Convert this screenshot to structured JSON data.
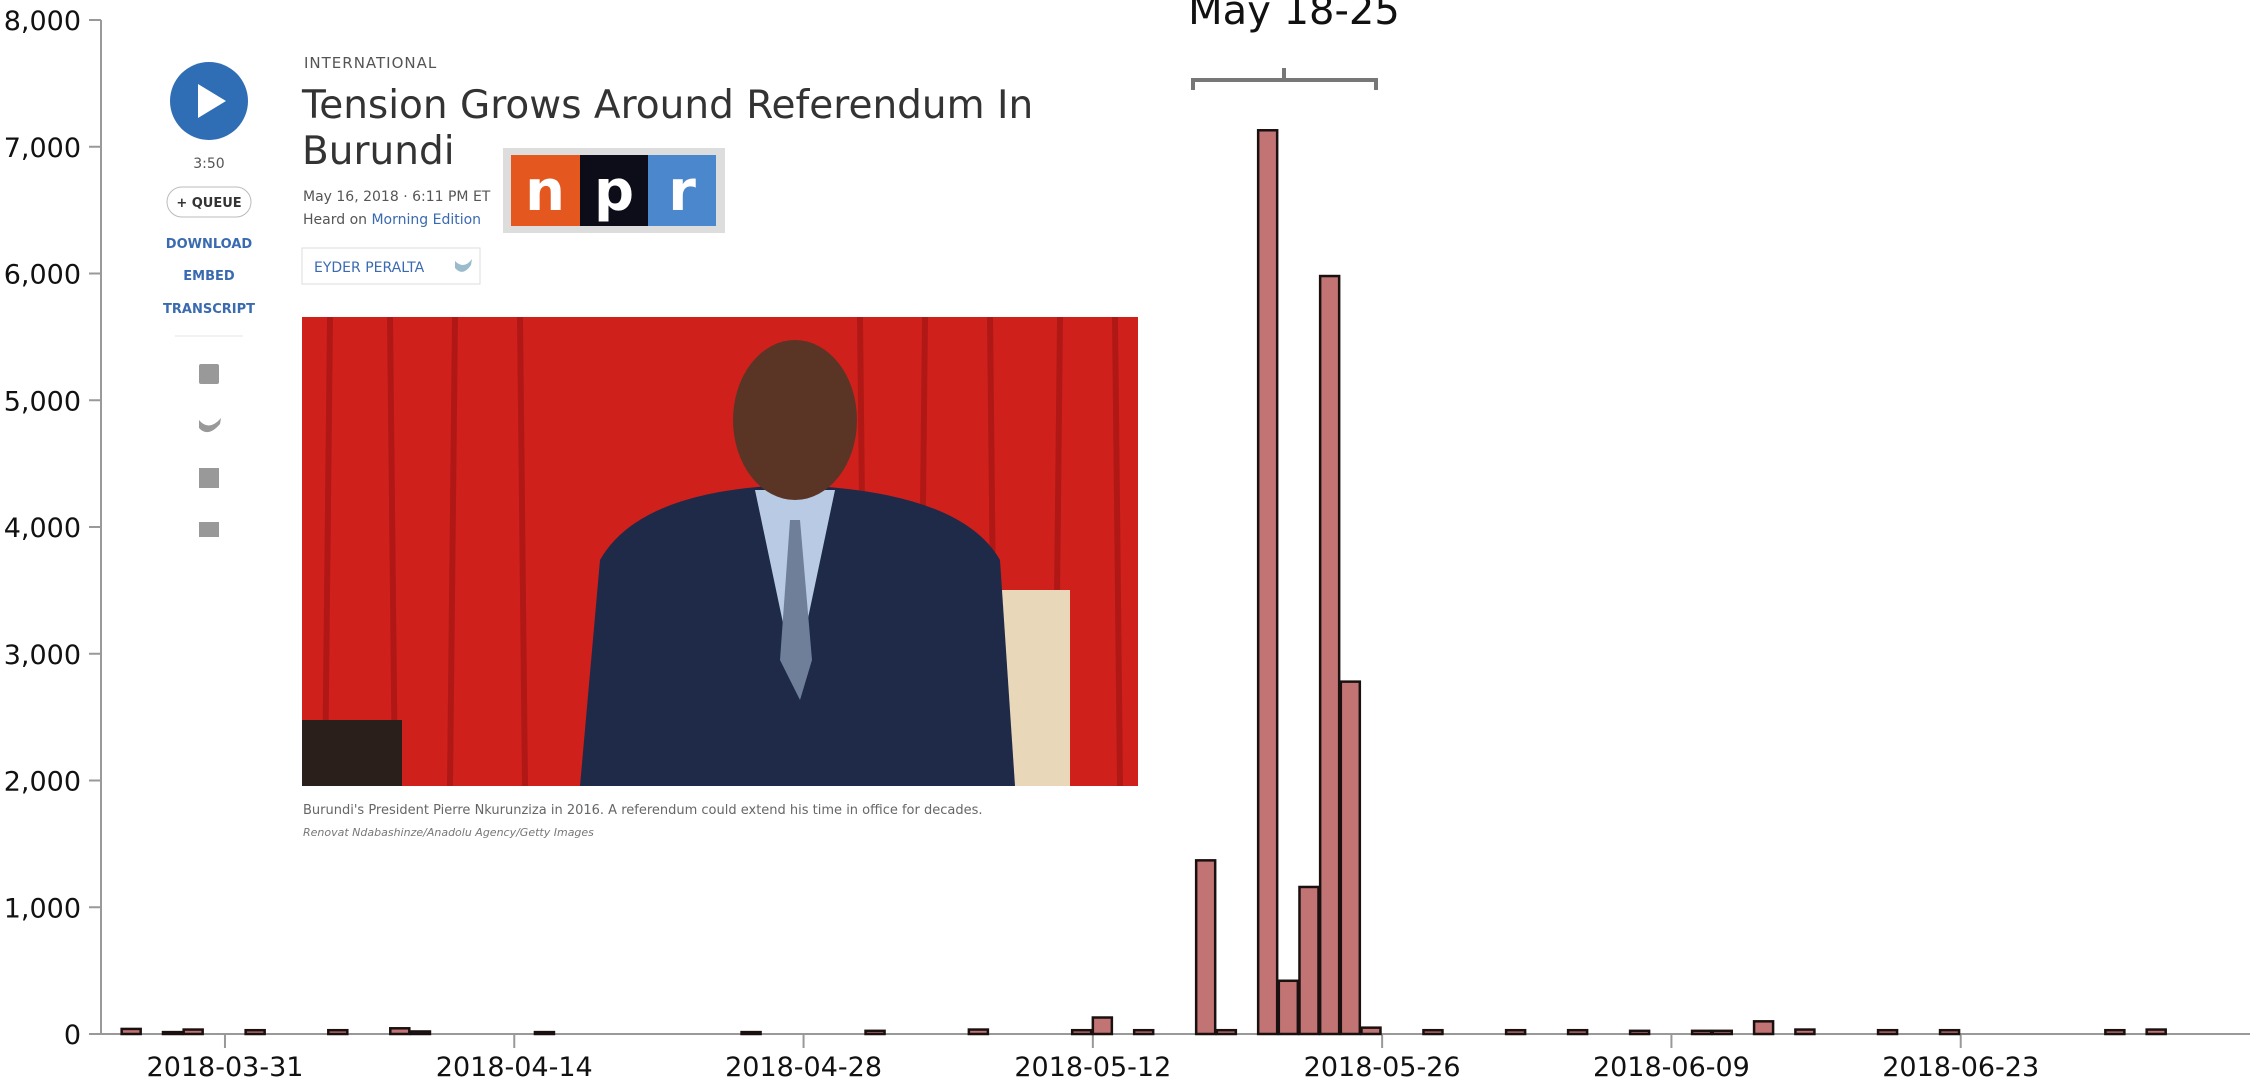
{
  "chart_data": {
    "type": "bar",
    "annotation": "May 18-25",
    "color": "#c27474",
    "x": [
      "2018-03-26",
      "2018-03-28",
      "2018-03-29",
      "2018-04-01",
      "2018-04-05",
      "2018-04-08",
      "2018-04-09",
      "2018-04-15",
      "2018-04-25",
      "2018-05-01",
      "2018-05-06",
      "2018-05-11",
      "2018-05-12",
      "2018-05-14",
      "2018-05-17",
      "2018-05-18",
      "2018-05-20",
      "2018-05-21",
      "2018-05-22",
      "2018-05-23",
      "2018-05-24",
      "2018-05-25",
      "2018-05-28",
      "2018-06-01",
      "2018-06-04",
      "2018-06-07",
      "2018-06-10",
      "2018-06-11",
      "2018-06-13",
      "2018-06-15",
      "2018-06-19",
      "2018-06-22",
      "2018-06-30",
      "2018-07-02"
    ],
    "values": [
      40,
      15,
      35,
      30,
      30,
      45,
      20,
      15,
      15,
      25,
      35,
      30,
      130,
      30,
      1370,
      30,
      7130,
      420,
      1160,
      5980,
      2780,
      50,
      30,
      30,
      30,
      25,
      25,
      25,
      100,
      35,
      30,
      30,
      30,
      35
    ],
    "xlim": [
      "2018-03-25",
      "2018-07-07"
    ],
    "xticks": [
      "2018-03-31",
      "2018-04-14",
      "2018-04-28",
      "2018-05-12",
      "2018-05-26",
      "2018-06-09",
      "2018-06-23"
    ],
    "ylim": [
      0,
      8000
    ],
    "yticks": [
      0,
      {
        "value": 1000,
        "label": "1,000"
      },
      {
        "value": 2000,
        "label": "2,000"
      },
      {
        "value": 3000,
        "label": "3,000"
      },
      {
        "value": 4000,
        "label": "4,000"
      },
      {
        "value": 5000,
        "label": "5,000"
      },
      {
        "value": 6000,
        "label": "6,000"
      },
      {
        "value": 7000,
        "label": "7,000"
      },
      {
        "value": 8000,
        "label": "8,000"
      }
    ]
  },
  "article": {
    "duration": "3:50",
    "queue": "+ QUEUE",
    "download": "DOWNLOAD",
    "embed": "EMBED",
    "transcript": "TRANSCRIPT",
    "section": "INTERNATIONAL",
    "title": [
      "Tension Grows Around Referendum In",
      "Burundi"
    ],
    "date": "May 16, 2018 · 6:11 PM ET",
    "heard_on": "Heard on",
    "program": "Morning Edition",
    "byline": "EYDER PERALTA",
    "logo": [
      "n",
      "p",
      "r"
    ],
    "caption": "Burundi's President Pierre Nkurunziza in 2016. A referendum could extend his time in office for decades.",
    "credit": "Renovat Ndabashinze/Anadolu Agency/Getty Images"
  }
}
